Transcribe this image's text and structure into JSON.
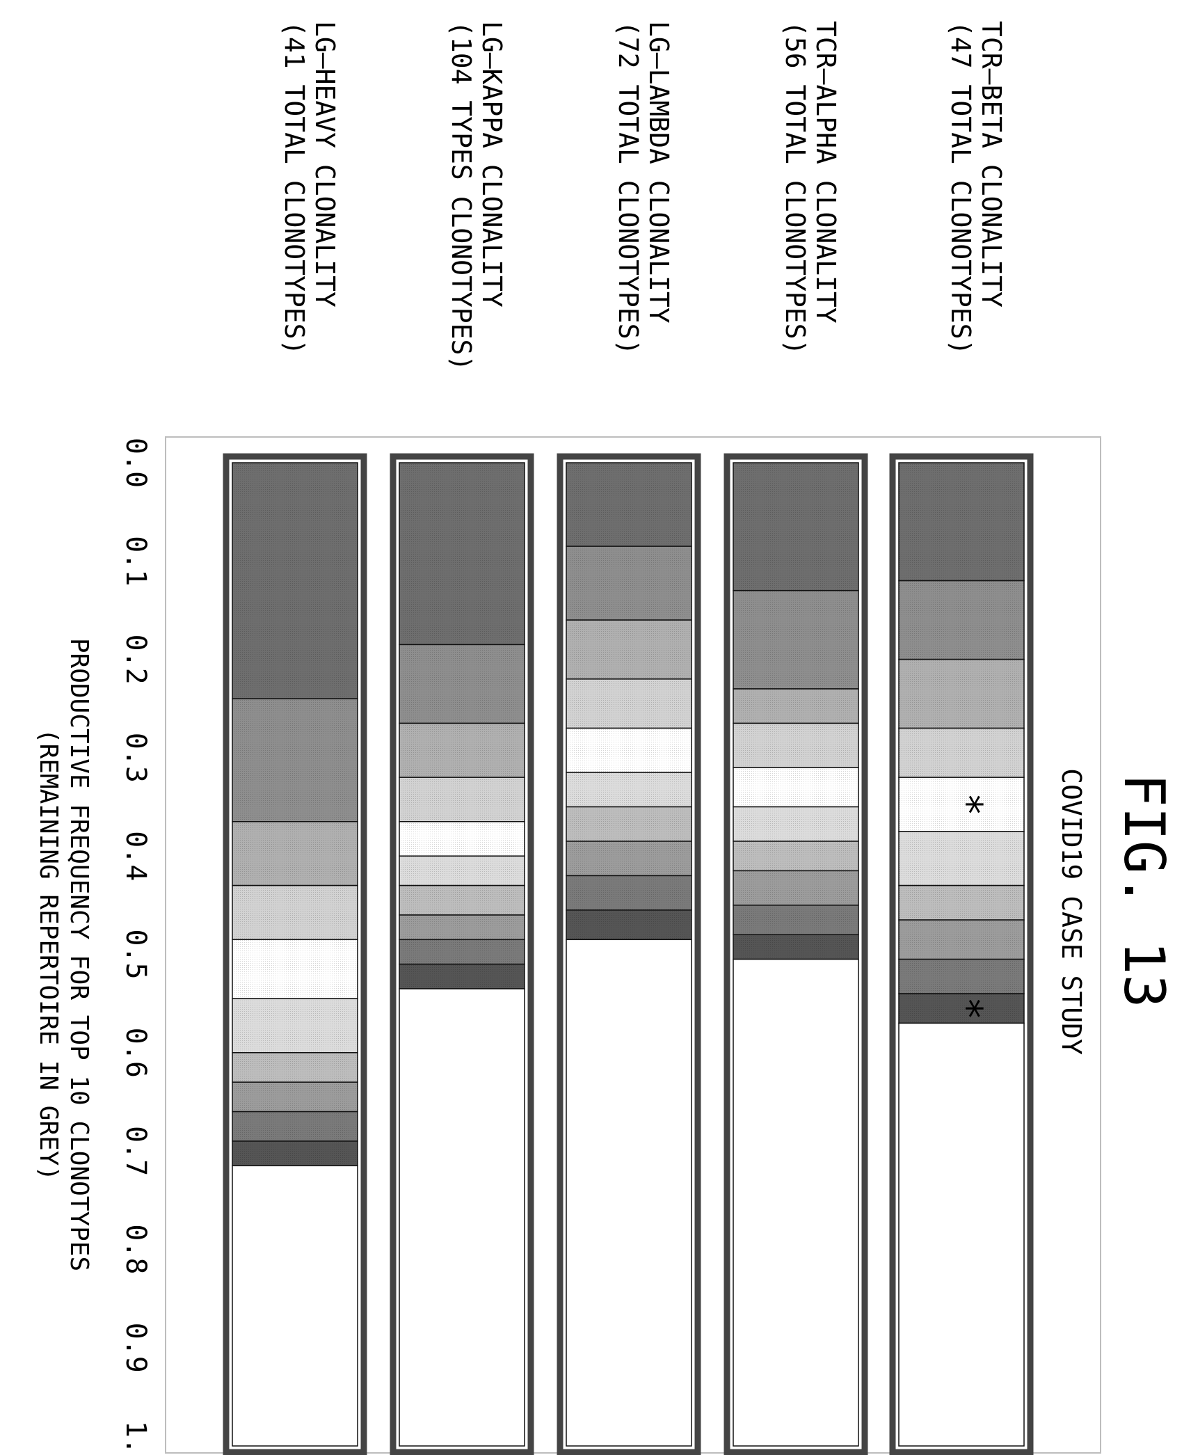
{
  "figure": {
    "label": "FIG. 13",
    "title": "COVID19 CASE STUDY"
  },
  "axis": {
    "ticks": [
      "0.0",
      "0.1",
      "0.2",
      "0.3",
      "0.4",
      "0.5",
      "0.6",
      "0.7",
      "0.8",
      "0.9",
      "1.0"
    ],
    "xlabel_line1": "PRODUCTIVE FREQUENCY FOR TOP 10 CLONOTYPES",
    "xlabel_line2": "(REMAINING REPERTOIRE IN GREY)"
  },
  "rows": [
    {
      "title": "TCR–BETA CLONALITY",
      "subtitle": "(47 TOTAL CLONOTYPES)"
    },
    {
      "title": "TCR–ALPHA CLONALITY",
      "subtitle": "(56 TOTAL CLONOTYPES)"
    },
    {
      "title": "LG–LAMBDA CLONALITY",
      "subtitle": "(72 TOTAL CLONOTYPES)"
    },
    {
      "title": "LG–KAPPA CLONALITY",
      "subtitle": "(104 TYPES CLONOTYPES)"
    },
    {
      "title": "LG–HEAVY CLONALITY",
      "subtitle": "(41 TOTAL CLONOTYPES)"
    }
  ],
  "styles": {
    "segment_shades": [
      "#6e6e6e",
      "#8e8e8e",
      "#b0b0b0",
      "#d2d2d2",
      "#ffffff",
      "#dcdcdc",
      "#bdbdbd",
      "#9c9c9c",
      "#7a7a7a",
      "#555555"
    ],
    "remaining_fill": "#ffffff",
    "frame_color": "#444444"
  },
  "chart_data": {
    "type": "bar",
    "orientation": "stacked-horizontal",
    "xlim": [
      0,
      1
    ],
    "series": [
      {
        "name": "TCR–BETA CLONALITY",
        "segments": [
          0.12,
          0.08,
          0.07,
          0.05,
          0.055,
          0.055,
          0.035,
          0.04,
          0.035,
          0.03
        ],
        "marked_segments": [
          4,
          9
        ]
      },
      {
        "name": "TCR–ALPHA CLONALITY",
        "segments": [
          0.13,
          0.1,
          0.035,
          0.045,
          0.04,
          0.035,
          0.03,
          0.035,
          0.03,
          0.025
        ],
        "marked_segments": []
      },
      {
        "name": "LG–LAMBDA CLONALITY",
        "segments": [
          0.085,
          0.075,
          0.06,
          0.05,
          0.045,
          0.035,
          0.035,
          0.035,
          0.035,
          0.03
        ],
        "marked_segments": []
      },
      {
        "name": "LG–KAPPA CLONALITY",
        "segments": [
          0.185,
          0.08,
          0.055,
          0.045,
          0.035,
          0.03,
          0.03,
          0.025,
          0.025,
          0.025
        ],
        "marked_segments": []
      },
      {
        "name": "LG–HEAVY CLONALITY",
        "segments": [
          0.24,
          0.125,
          0.065,
          0.055,
          0.06,
          0.055,
          0.03,
          0.03,
          0.03,
          0.025
        ],
        "marked_segments": []
      }
    ]
  }
}
